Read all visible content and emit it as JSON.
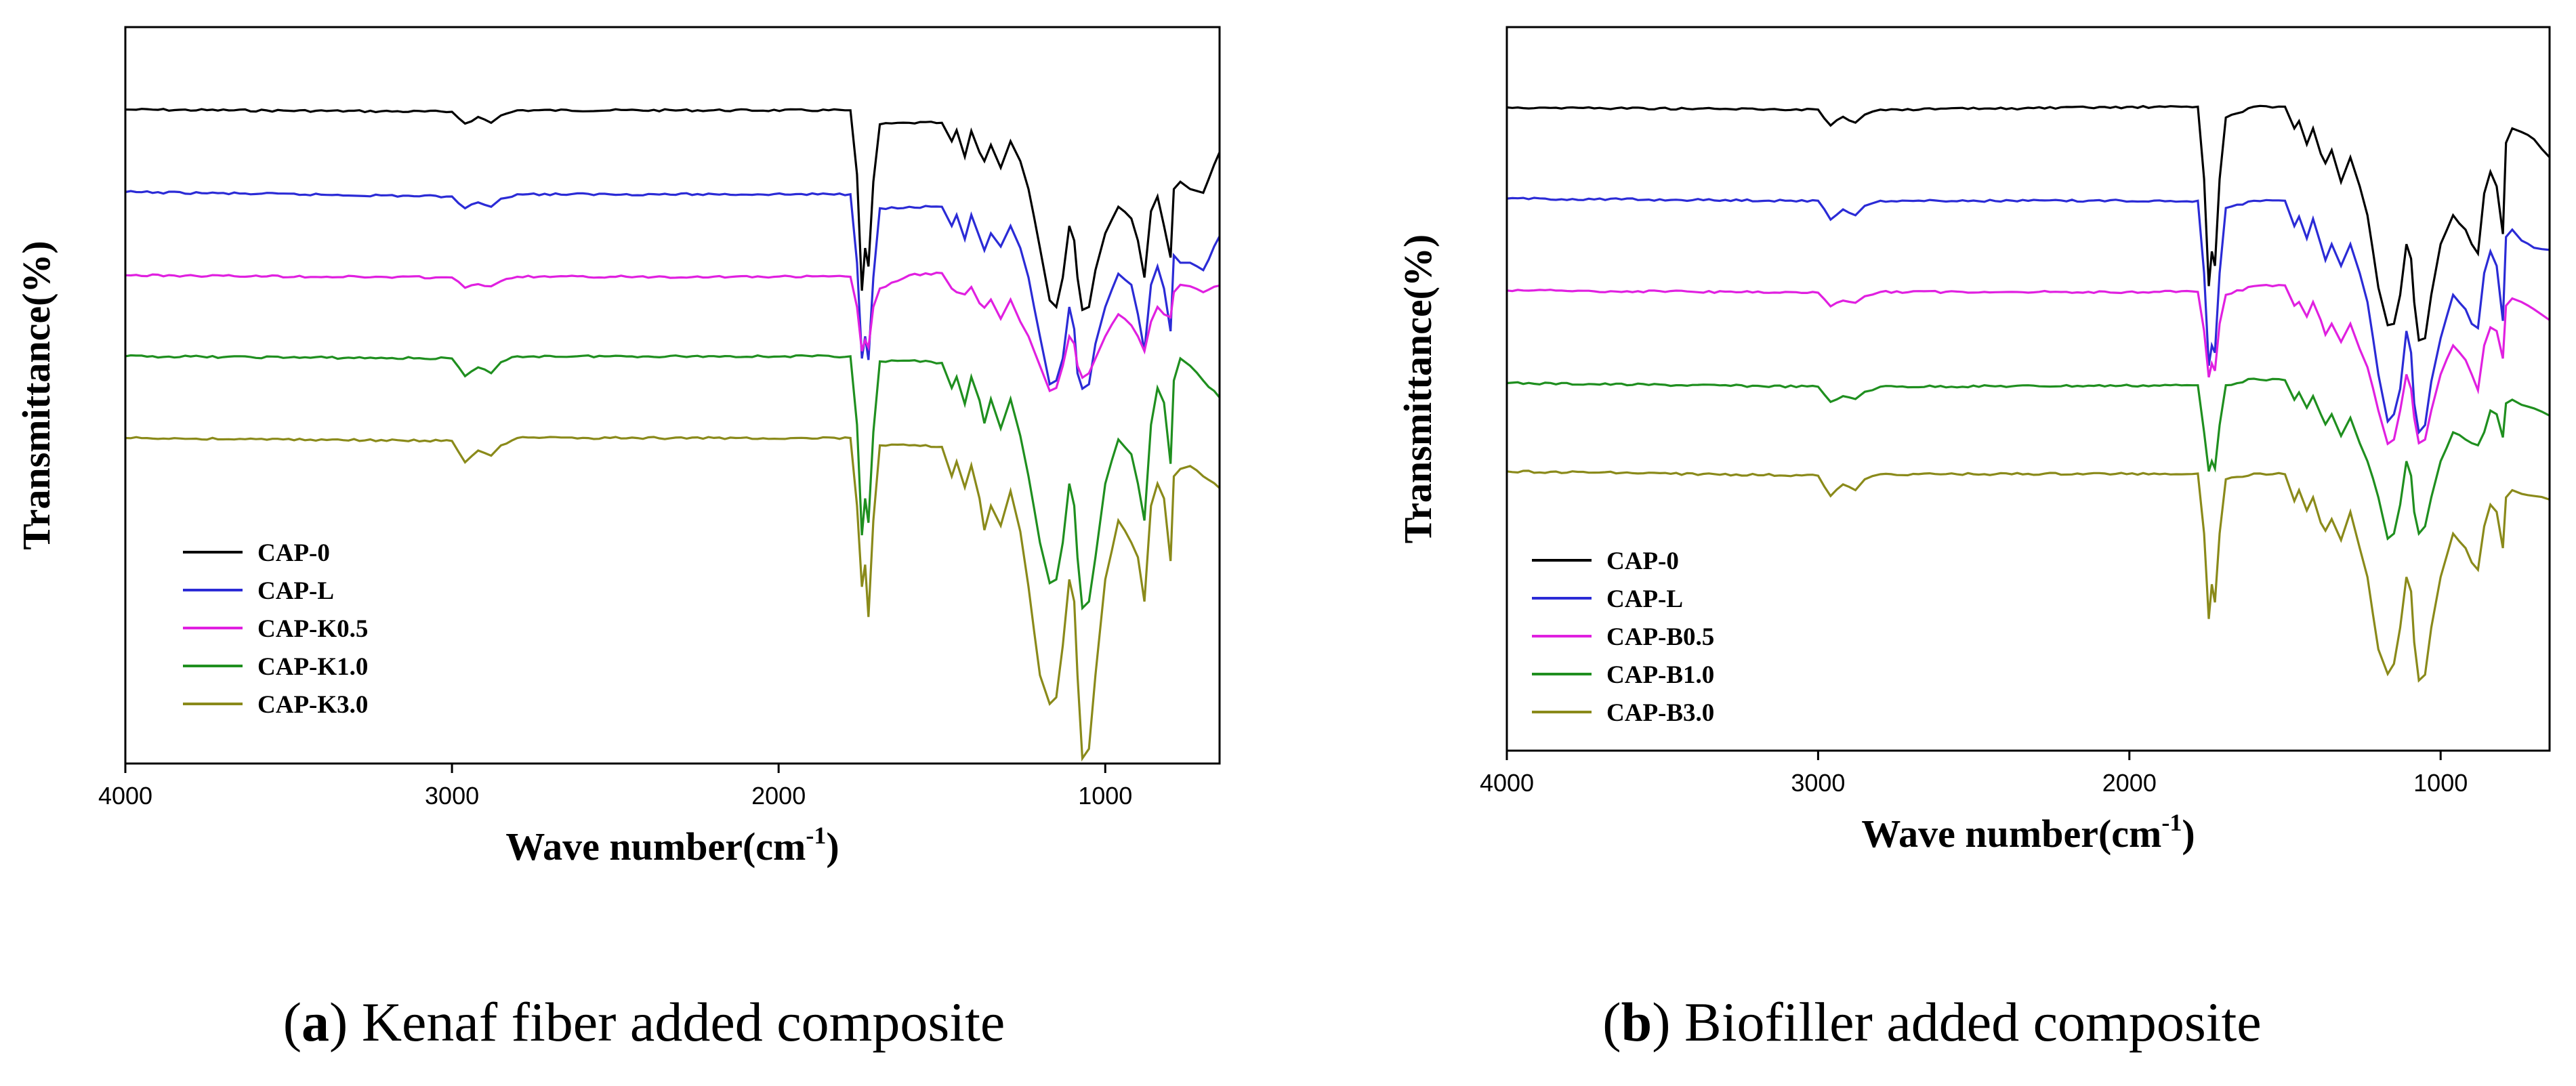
{
  "chart_data": [
    {
      "type": "line",
      "panel": "a",
      "caption_letter": "a",
      "caption_text": ") Kenaf fiber added composite",
      "xlabel": "Wave number(cm",
      "xlabel_sup": "-1",
      "xlabel_close": ")",
      "ylabel": "Transmittance(%)",
      "xlim": [
        4000,
        650
      ],
      "ylim": [
        0,
        100
      ],
      "grid": false,
      "legend_position": "lower-left",
      "xticks": [
        4000,
        3000,
        2000,
        1000
      ],
      "xtick_labels": [
        "4000",
        "3000",
        "2000",
        "1000"
      ],
      "x": [
        4000,
        3000,
        2960,
        2920,
        2880,
        2850,
        2800,
        1780,
        1760,
        1745,
        1735,
        1725,
        1710,
        1690,
        1600,
        1500,
        1470,
        1455,
        1430,
        1410,
        1385,
        1370,
        1350,
        1320,
        1290,
        1260,
        1235,
        1200,
        1170,
        1150,
        1130,
        1110,
        1095,
        1085,
        1070,
        1050,
        1030,
        1000,
        960,
        920,
        900,
        880,
        860,
        840,
        820,
        800,
        790,
        770,
        740,
        700,
        650
      ],
      "series": [
        {
          "name": "CAP-0",
          "color": "#000000",
          "values": [
            88.8,
            88.5,
            86.9,
            87.8,
            87.0,
            88.0,
            88.7,
            88.7,
            80.0,
            64.2,
            70.0,
            67.5,
            79.0,
            86.8,
            87.0,
            87.0,
            84.5,
            86.0,
            82.4,
            85.9,
            83.0,
            81.8,
            84.0,
            80.9,
            84.5,
            81.8,
            78.0,
            70.0,
            62.9,
            62.0,
            66.0,
            73.0,
            71.0,
            66.0,
            61.6,
            62.0,
            67.0,
            72.0,
            75.6,
            74.0,
            71.0,
            66.0,
            75.0,
            77.0,
            73.0,
            68.7,
            78.0,
            79.0,
            78.0,
            77.5,
            83.0
          ]
        },
        {
          "name": "CAP-L",
          "color": "#2b2bd6",
          "values": [
            77.6,
            77.0,
            75.4,
            76.2,
            75.6,
            76.7,
            77.3,
            77.3,
            68.0,
            55.0,
            58.0,
            54.8,
            66.0,
            75.4,
            75.6,
            75.6,
            73.0,
            74.5,
            71.2,
            74.5,
            71.5,
            69.7,
            72.0,
            70.2,
            73.0,
            70.0,
            66.0,
            58.0,
            51.5,
            52.0,
            55.0,
            62.0,
            59.0,
            53.0,
            50.9,
            51.5,
            57.0,
            62.0,
            66.5,
            65.0,
            61.0,
            56.0,
            65.0,
            67.5,
            64.5,
            58.7,
            69.0,
            68.0,
            68.0,
            67.0,
            71.6
          ]
        },
        {
          "name": "CAP-K0.5",
          "color": "#e020e0",
          "values": [
            66.3,
            66.0,
            64.6,
            65.1,
            64.8,
            65.5,
            66.1,
            66.1,
            62.0,
            56.0,
            57.5,
            56.5,
            62.0,
            64.5,
            66.3,
            66.6,
            64.5,
            64.0,
            63.7,
            64.7,
            62.5,
            61.9,
            63.0,
            60.4,
            63.0,
            60.0,
            58.0,
            54.0,
            50.6,
            51.0,
            54.0,
            58.0,
            57.0,
            54.0,
            52.4,
            53.0,
            55.0,
            58.0,
            61.0,
            59.5,
            58.0,
            56.0,
            60.0,
            62.0,
            61.0,
            60.6,
            64.0,
            65.0,
            64.8,
            64.0,
            64.9
          ]
        },
        {
          "name": "CAP-K1.0",
          "color": "#1f8f1f",
          "values": [
            55.3,
            55.0,
            52.6,
            53.8,
            53.0,
            54.5,
            55.3,
            55.3,
            46.0,
            31.0,
            36.0,
            32.7,
            45.0,
            54.6,
            54.7,
            54.4,
            51.0,
            52.5,
            48.8,
            52.5,
            49.3,
            46.2,
            49.5,
            45.5,
            49.5,
            44.5,
            39.0,
            30.0,
            24.5,
            25.0,
            30.0,
            38.0,
            35.0,
            28.0,
            21.1,
            22.0,
            28.0,
            38.0,
            44.0,
            42.0,
            38.0,
            33.0,
            46.0,
            51.0,
            49.0,
            40.7,
            52.0,
            55.0,
            54.0,
            52.0,
            49.7
          ]
        },
        {
          "name": "CAP-K3.0",
          "color": "#8a8a1a",
          "values": [
            44.2,
            43.8,
            40.9,
            42.5,
            41.8,
            43.2,
            44.2,
            44.2,
            35.0,
            24.0,
            27.0,
            19.9,
            33.0,
            43.2,
            43.2,
            43.0,
            39.0,
            41.0,
            37.5,
            40.5,
            36.0,
            31.7,
            35.0,
            32.3,
            37.0,
            31.5,
            24.0,
            12.0,
            8.1,
            9.0,
            16.0,
            25.0,
            22.0,
            12.0,
            0.7,
            2.0,
            12.0,
            25.0,
            33.0,
            30.0,
            28.0,
            22.0,
            35.0,
            38.0,
            36.0,
            27.5,
            39.0,
            40.0,
            40.4,
            39.0,
            37.4
          ]
        }
      ]
    },
    {
      "type": "line",
      "panel": "b",
      "caption_letter": "b",
      "caption_text": ") Biofiller added composite",
      "xlabel": "Wave number(cm",
      "xlabel_sup": "-1",
      "xlabel_close": ")",
      "ylabel": "Transmittance(%)",
      "xlim": [
        4000,
        650
      ],
      "ylim": [
        0,
        100
      ],
      "grid": false,
      "legend_position": "lower-left",
      "xticks": [
        4000,
        3000,
        2000,
        1000
      ],
      "xtick_labels": [
        "4000",
        "3000",
        "2000",
        "1000"
      ],
      "x": [
        4000,
        3000,
        2960,
        2920,
        2880,
        2850,
        2800,
        1780,
        1760,
        1745,
        1735,
        1725,
        1710,
        1690,
        1600,
        1500,
        1470,
        1455,
        1430,
        1410,
        1385,
        1370,
        1350,
        1320,
        1290,
        1260,
        1235,
        1200,
        1170,
        1150,
        1130,
        1110,
        1095,
        1085,
        1070,
        1050,
        1030,
        1000,
        960,
        920,
        900,
        880,
        860,
        840,
        820,
        800,
        790,
        770,
        740,
        700,
        650
      ],
      "series": [
        {
          "name": "CAP-0",
          "color": "#000000",
          "values": [
            88.9,
            88.6,
            86.4,
            87.6,
            86.8,
            87.9,
            88.6,
            89.0,
            79.0,
            64.2,
            69.0,
            67.0,
            79.0,
            87.5,
            89.0,
            89.0,
            86.0,
            87.0,
            83.8,
            86.0,
            82.5,
            81.2,
            83.0,
            78.6,
            82.0,
            78.0,
            74.0,
            64.0,
            58.8,
            59.0,
            63.0,
            70.0,
            68.0,
            62.0,
            56.7,
            57.0,
            63.0,
            70.0,
            74.0,
            72.0,
            70.0,
            68.7,
            77.0,
            80.0,
            78.0,
            71.4,
            84.0,
            86.0,
            85.5,
            84.5,
            82.0
          ]
        },
        {
          "name": "CAP-L",
          "color": "#2b2bd6",
          "values": [
            76.3,
            76.0,
            73.4,
            74.8,
            74.0,
            75.3,
            76.0,
            76.0,
            66.0,
            53.2,
            56.0,
            55.0,
            66.0,
            75.0,
            76.0,
            76.0,
            72.5,
            73.8,
            70.8,
            73.5,
            70.0,
            67.8,
            70.0,
            67.0,
            70.0,
            66.0,
            62.0,
            52.0,
            45.5,
            46.5,
            50.0,
            58.0,
            55.0,
            48.0,
            44.0,
            45.0,
            51.0,
            57.0,
            63.0,
            61.0,
            59.0,
            58.4,
            66.0,
            69.0,
            67.0,
            59.4,
            71.0,
            72.0,
            70.5,
            69.5,
            69.2
          ]
        },
        {
          "name": "CAP-B0.5",
          "color": "#e020e0",
          "values": [
            63.6,
            63.3,
            61.4,
            62.2,
            61.9,
            62.8,
            63.4,
            63.4,
            58.0,
            51.6,
            53.5,
            52.5,
            59.0,
            63.0,
            64.2,
            64.3,
            61.5,
            62.0,
            60.0,
            62.0,
            59.5,
            57.5,
            59.0,
            56.5,
            59.0,
            55.5,
            53.0,
            47.0,
            42.4,
            43.0,
            47.0,
            52.0,
            50.0,
            46.0,
            42.5,
            43.0,
            47.0,
            52.0,
            56.0,
            54.0,
            52.0,
            49.8,
            56.0,
            58.5,
            58.0,
            54.2,
            61.5,
            62.5,
            62.0,
            61.0,
            59.5
          ]
        },
        {
          "name": "CAP-B1.0",
          "color": "#1f8f1f",
          "values": [
            50.8,
            50.3,
            48.2,
            49.0,
            48.6,
            49.6,
            50.3,
            50.5,
            44.0,
            38.6,
            40.0,
            39.0,
            45.0,
            50.5,
            51.4,
            51.2,
            48.5,
            49.5,
            47.4,
            49.0,
            46.5,
            45.1,
            46.5,
            43.5,
            46.0,
            42.5,
            40.0,
            35.0,
            29.3,
            30.0,
            34.0,
            40.0,
            38.0,
            33.0,
            30.0,
            31.0,
            35.0,
            40.0,
            44.0,
            43.0,
            42.5,
            42.2,
            44.0,
            47.0,
            46.5,
            43.3,
            48.0,
            48.5,
            47.8,
            47.3,
            46.3
          ]
        },
        {
          "name": "CAP-B3.0",
          "color": "#8a8a1a",
          "values": [
            38.6,
            38.0,
            35.2,
            36.8,
            36.0,
            37.5,
            38.2,
            38.3,
            30.0,
            18.2,
            23.0,
            20.5,
            30.0,
            37.5,
            38.3,
            38.2,
            34.5,
            36.0,
            33.2,
            35.0,
            31.5,
            30.4,
            32.0,
            29.1,
            33.0,
            28.0,
            24.0,
            14.0,
            10.6,
            12.0,
            17.0,
            24.0,
            22.0,
            15.0,
            9.7,
            10.5,
            17.0,
            24.0,
            30.0,
            28.0,
            26.0,
            25.0,
            31.0,
            34.0,
            33.0,
            28.0,
            35.0,
            36.0,
            35.5,
            35.2,
            34.7
          ]
        }
      ]
    }
  ]
}
